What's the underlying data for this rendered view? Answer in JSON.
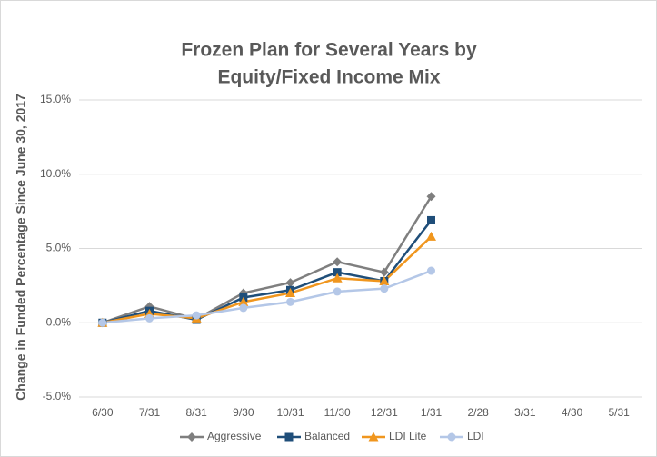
{
  "chart_data": {
    "type": "line",
    "title": [
      "Frozen Plan for Several Years by",
      "Equity/Fixed Income Mix"
    ],
    "y_label": "Change in Funded Percentage Since June 30, 2017",
    "categories": [
      "6/30",
      "7/31",
      "8/31",
      "9/30",
      "10/31",
      "11/30",
      "12/31",
      "1/31",
      "2/28",
      "3/31",
      "4/30",
      "5/31"
    ],
    "series": [
      {
        "name": "Aggressive",
        "color": "#7f7f7f",
        "marker": "diamond",
        "values": [
          0,
          1.1,
          0.25,
          2.0,
          2.7,
          4.1,
          3.4,
          8.5,
          null,
          null,
          null,
          null
        ]
      },
      {
        "name": "Balanced",
        "color": "#1f4e79",
        "marker": "square",
        "values": [
          0,
          0.8,
          0.2,
          1.7,
          2.2,
          3.4,
          2.8,
          6.9,
          null,
          null,
          null,
          null
        ]
      },
      {
        "name": "LDI Lite",
        "color": "#f0961e",
        "marker": "triangle",
        "values": [
          0,
          0.6,
          0.3,
          1.4,
          2.0,
          3.0,
          2.8,
          5.8,
          null,
          null,
          null,
          null
        ]
      },
      {
        "name": "LDI",
        "color": "#b4c7e7",
        "marker": "circle",
        "values": [
          0,
          0.3,
          0.5,
          1.0,
          1.4,
          2.1,
          2.3,
          3.5,
          null,
          null,
          null,
          null
        ]
      }
    ],
    "ylim": [
      -5,
      15
    ],
    "yticks": [
      {
        "value": -5,
        "label": "-5.0%"
      },
      {
        "value": 0,
        "label": "0.0%"
      },
      {
        "value": 5,
        "label": "5.0%"
      },
      {
        "value": 10,
        "label": "10.0%"
      },
      {
        "value": 15,
        "label": "15.0%"
      }
    ],
    "grid": true,
    "legend": "bottom"
  }
}
